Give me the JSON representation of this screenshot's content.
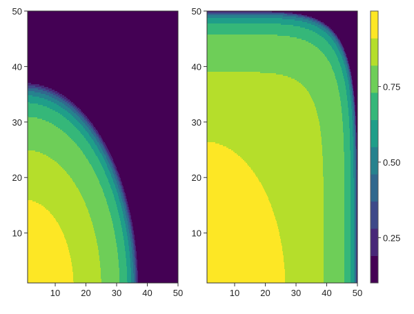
{
  "chart_data": [
    {
      "type": "heatmap",
      "subtype": "filled-contour",
      "xlim": [
        1,
        50
      ],
      "ylim": [
        1,
        50
      ],
      "xticks": [
        "10",
        "20",
        "30",
        "40",
        "50"
      ],
      "yticks": [
        "10",
        "20",
        "30",
        "40",
        "50"
      ],
      "radial_profile": [
        [
          0,
          0.98
        ],
        [
          16,
          0.91
        ],
        [
          25,
          0.82
        ],
        [
          31,
          0.73
        ],
        [
          33.5,
          0.64
        ],
        [
          34.8,
          0.55
        ],
        [
          35.6,
          0.46
        ],
        [
          36.2,
          0.37
        ],
        [
          36.6,
          0.28
        ],
        [
          37,
          0.19
        ],
        [
          37.5,
          0.12
        ]
      ],
      "outside_value": 0.12
    },
    {
      "type": "heatmap",
      "subtype": "filled-contour",
      "xlim": [
        1,
        50
      ],
      "ylim": [
        1,
        50
      ],
      "xticks": [
        "10",
        "20",
        "30",
        "40",
        "50"
      ],
      "yticks": [
        "10",
        "20",
        "30",
        "40",
        "50"
      ],
      "radial_profile": [
        [
          0,
          0.98
        ],
        [
          26.5,
          0.91
        ],
        [
          39,
          0.82
        ],
        [
          45.8,
          0.73
        ],
        [
          47.8,
          0.64
        ],
        [
          48.8,
          0.55
        ],
        [
          49.3,
          0.46
        ],
        [
          49.6,
          0.37
        ],
        [
          49.8,
          0.28
        ],
        [
          50,
          0.15
        ]
      ],
      "outside_value": 0.12
    }
  ],
  "colorbar": {
    "levels": [
      0.1,
      0.19,
      0.28,
      0.37,
      0.46,
      0.55,
      0.64,
      0.73,
      0.82,
      0.91,
      1.0
    ],
    "colors": [
      "#440154",
      "#482878",
      "#3e4989",
      "#31688e",
      "#26828e",
      "#1f9e89",
      "#35b779",
      "#6ece58",
      "#b5de2b",
      "#fde725"
    ],
    "ticks": [
      "0.25",
      "0.50",
      "0.75"
    ],
    "tick_values": [
      0.25,
      0.5,
      0.75
    ]
  }
}
